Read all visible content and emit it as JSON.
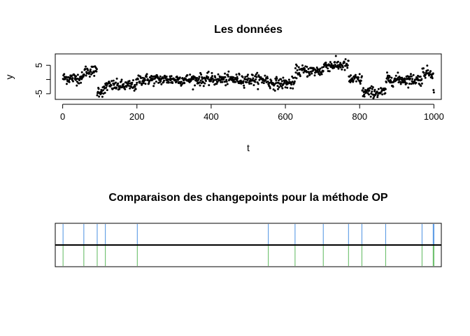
{
  "chart_data": [
    {
      "type": "scatter",
      "title": "Les données",
      "xlabel": "t",
      "ylabel": "y",
      "xlim": [
        -20,
        1020
      ],
      "ylim": [
        -7,
        9
      ],
      "x_ticks": [
        0,
        200,
        400,
        600,
        800,
        1000
      ],
      "y_ticks": [
        -5,
        0,
        5
      ],
      "y_tick_labels": [
        "-5",
        "",
        "5"
      ],
      "n_points": 1000,
      "point_color": "#000000",
      "segments": [
        {
          "start": 1,
          "end": 56,
          "mean": 0.5
        },
        {
          "start": 57,
          "end": 92,
          "mean": 3.0
        },
        {
          "start": 93,
          "end": 114,
          "mean": -4.0
        },
        {
          "start": 115,
          "end": 200,
          "mean": -2.2
        },
        {
          "start": 201,
          "end": 553,
          "mean": 0.0
        },
        {
          "start": 554,
          "end": 626,
          "mean": -1.3
        },
        {
          "start": 627,
          "end": 702,
          "mean": 3.0
        },
        {
          "start": 703,
          "end": 770,
          "mean": 5.0
        },
        {
          "start": 771,
          "end": 806,
          "mean": 0.0
        },
        {
          "start": 807,
          "end": 870,
          "mean": -4.5
        },
        {
          "start": 871,
          "end": 968,
          "mean": 0.0
        },
        {
          "start": 969,
          "end": 998,
          "mean": 2.5
        },
        {
          "start": 999,
          "end": 1000,
          "mean": -5.0
        }
      ]
    },
    {
      "type": "changepoints",
      "title": "Comparaison des changepoints pour la méthode OP",
      "xlim": [
        -20,
        1020
      ],
      "method_a": {
        "color": "#4a90e2",
        "position": "top",
        "changepoints": [
          1,
          57,
          93,
          115,
          201,
          554,
          626,
          702,
          770,
          806,
          870,
          968,
          998,
          1000
        ]
      },
      "method_b": {
        "color": "#5cb85c",
        "position": "bottom",
        "changepoints": [
          1,
          57,
          93,
          115,
          201,
          554,
          626,
          702,
          770,
          806,
          870,
          968,
          998,
          1000
        ]
      }
    }
  ]
}
